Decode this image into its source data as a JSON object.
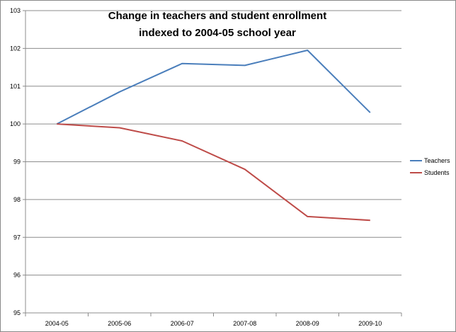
{
  "chart_data": {
    "type": "line",
    "title": "Change in teachers and student enrollment",
    "subtitle": "indexed to 2004-05 school year",
    "xlabel": "",
    "ylabel": "",
    "categories": [
      "2004-05",
      "2005-06",
      "2006-07",
      "2007-08",
      "2008-09",
      "2009-10"
    ],
    "ylim": [
      95,
      103
    ],
    "yticks": [
      95,
      96,
      97,
      98,
      99,
      100,
      101,
      102,
      103
    ],
    "grid": true,
    "legend_position": "right",
    "series": [
      {
        "name": "Teachers",
        "color": "#4a7ebb",
        "values": [
          100.0,
          100.85,
          101.6,
          101.55,
          101.95,
          100.3
        ]
      },
      {
        "name": "Students",
        "color": "#be4b48",
        "values": [
          100.0,
          99.9,
          99.55,
          98.8,
          97.55,
          97.45
        ]
      }
    ]
  }
}
